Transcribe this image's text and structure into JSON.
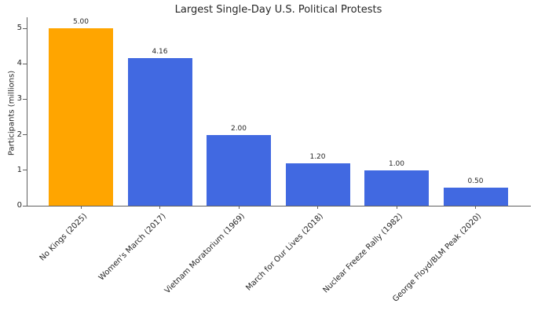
{
  "chart_data": {
    "type": "bar",
    "title": "Largest Single-Day U.S. Political Protests",
    "xlabel": "",
    "ylabel": "Participants (millions)",
    "categories": [
      "No Kings (2025)",
      "Women's March (2017)",
      "Vietnam Moratorium (1969)",
      "March for Our Lives (2018)",
      "Nuclear Freeze Rally (1982)",
      "George Floyd/BLM Peak (2020)"
    ],
    "values": [
      5.0,
      4.16,
      2.0,
      1.2,
      1.0,
      0.5
    ],
    "value_labels": [
      "5.00",
      "4.16",
      "2.00",
      "1.20",
      "1.00",
      "0.50"
    ],
    "bar_colors": [
      "#FFA500",
      "#4169E1",
      "#4169E1",
      "#4169E1",
      "#4169E1",
      "#4169E1"
    ],
    "default_bar_color": "#4169E1",
    "highlight_color": "#FFA500",
    "ytick_labels": [
      "0",
      "1",
      "2",
      "3",
      "4",
      "5"
    ],
    "ytick_values": [
      0,
      1,
      2,
      3,
      4,
      5
    ],
    "ylim": [
      0,
      5.31
    ],
    "x_tick_rotation_deg": 45,
    "grid": false,
    "legend_position": "none"
  },
  "colors": {
    "axis": "#606060",
    "text": "#262626",
    "background": "#FFFFFF"
  }
}
